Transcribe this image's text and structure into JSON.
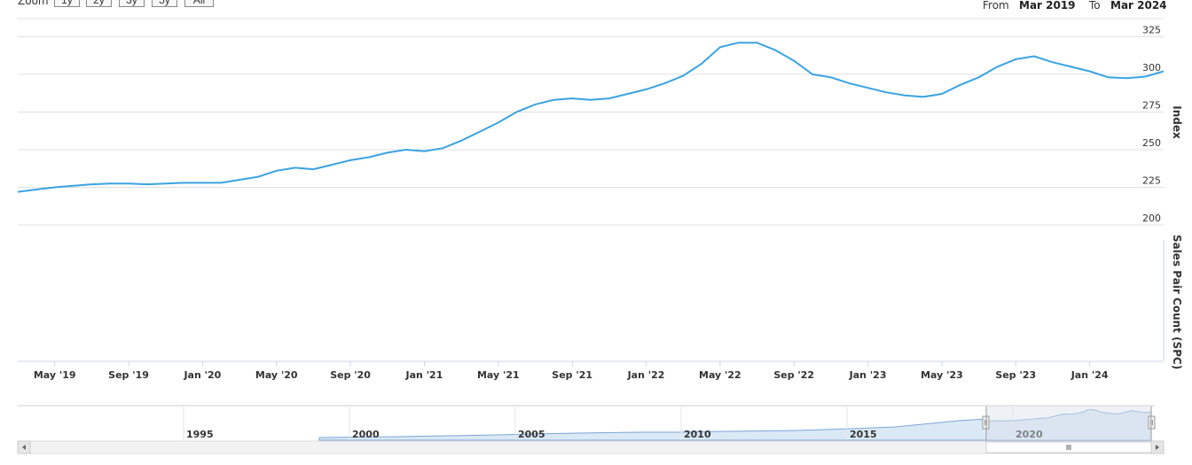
{
  "toolbar": {
    "zoom_label": "Zoom",
    "zoom_buttons": [
      "1y",
      "2y",
      "3y",
      "5y",
      "All"
    ],
    "from_label": "From",
    "from_value": "Mar 2019",
    "to_label": "To",
    "to_value": "Mar 2024"
  },
  "colors": {
    "series": "#3aa3e3",
    "grid": "#e0e0e0",
    "axis": "#cccccc",
    "navigator_fill": "#dbe9f6",
    "navigator_mask": "rgba(220,225,235,0.45)"
  },
  "chart_data": {
    "type": "line",
    "title": "",
    "xlabel": "",
    "ylabel": "Index",
    "ylabel2": "Sales Pair Count (SPC)",
    "ylim": [
      200,
      337
    ],
    "yticks": [
      200,
      225,
      250,
      275,
      300,
      325
    ],
    "xticks": [
      "May '19",
      "Sep '19",
      "Jan '20",
      "May '20",
      "Sep '20",
      "Jan '21",
      "May '21",
      "Sep '21",
      "Jan '22",
      "May '22",
      "Sep '22",
      "Jan '23",
      "May '23",
      "Sep '23",
      "Jan '24"
    ],
    "grid": true,
    "legend": "none",
    "series": [
      {
        "values": [
          [
            0,
            222
          ],
          [
            1,
            223.5
          ],
          [
            2,
            225
          ],
          [
            3,
            226
          ],
          [
            4,
            227
          ],
          [
            5,
            227.5
          ],
          [
            6,
            227.5
          ],
          [
            7,
            227
          ],
          [
            8,
            227.5
          ],
          [
            9,
            228
          ],
          [
            10,
            228
          ],
          [
            11,
            228
          ],
          [
            12,
            230
          ],
          [
            13,
            232
          ],
          [
            14,
            236
          ],
          [
            15,
            238
          ],
          [
            16,
            237
          ],
          [
            17,
            240
          ],
          [
            18,
            243
          ],
          [
            19,
            245
          ],
          [
            20,
            248
          ],
          [
            21,
            250
          ],
          [
            22,
            249
          ],
          [
            23,
            251
          ],
          [
            24,
            256
          ],
          [
            25,
            262
          ],
          [
            26,
            268
          ],
          [
            27,
            275
          ],
          [
            28,
            280
          ],
          [
            29,
            283
          ],
          [
            30,
            284
          ],
          [
            31,
            283
          ],
          [
            32,
            284
          ],
          [
            33,
            287
          ],
          [
            34,
            290
          ],
          [
            35,
            294
          ],
          [
            36,
            299
          ],
          [
            37,
            307
          ],
          [
            38,
            318
          ],
          [
            39,
            321
          ],
          [
            40,
            321
          ],
          [
            41,
            316
          ],
          [
            42,
            309
          ],
          [
            43,
            300
          ],
          [
            44,
            298
          ],
          [
            45,
            294
          ],
          [
            46,
            291
          ],
          [
            47,
            288
          ],
          [
            48,
            286
          ],
          [
            49,
            285
          ],
          [
            50,
            287
          ],
          [
            51,
            293
          ],
          [
            52,
            298
          ],
          [
            53,
            305
          ],
          [
            54,
            310
          ],
          [
            55,
            312
          ],
          [
            56,
            308
          ],
          [
            57,
            305
          ],
          [
            58,
            302
          ],
          [
            59,
            298
          ],
          [
            60,
            297.5
          ],
          [
            61,
            298.5
          ],
          [
            62,
            302
          ]
        ]
      }
    ],
    "navigator": {
      "x_ticks": [
        "1995",
        "2000",
        "2005",
        "2010",
        "2015",
        "2020"
      ],
      "selected_range": [
        "Mar 2019",
        "Mar 2024"
      ]
    }
  }
}
